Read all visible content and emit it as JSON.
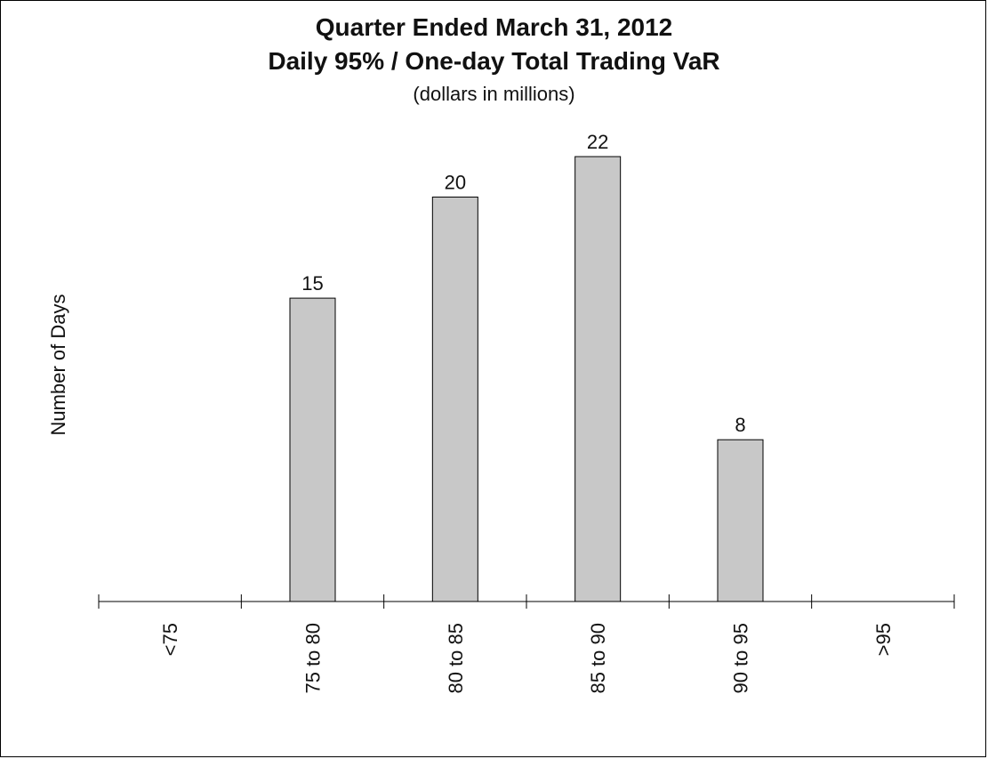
{
  "chart_data": {
    "type": "bar",
    "title": "Quarter Ended March 31, 2012",
    "title_line2": "Daily 95% / One-day Total Trading VaR",
    "subtitle": "(dollars in millions)",
    "xlabel": "",
    "ylabel": "Number of Days",
    "categories": [
      "<75",
      "75 to 80",
      "80 to 85",
      "85 to 90",
      "90 to 95",
      ">95"
    ],
    "values": [
      0,
      15,
      20,
      22,
      8,
      0
    ],
    "data_labels": [
      "",
      "15",
      "20",
      "22",
      "8",
      ""
    ],
    "ylim": [
      0,
      22
    ],
    "grid": false,
    "legend": "none",
    "bar_color": "#c8c8c8",
    "bar_edge_color": "#000000"
  }
}
